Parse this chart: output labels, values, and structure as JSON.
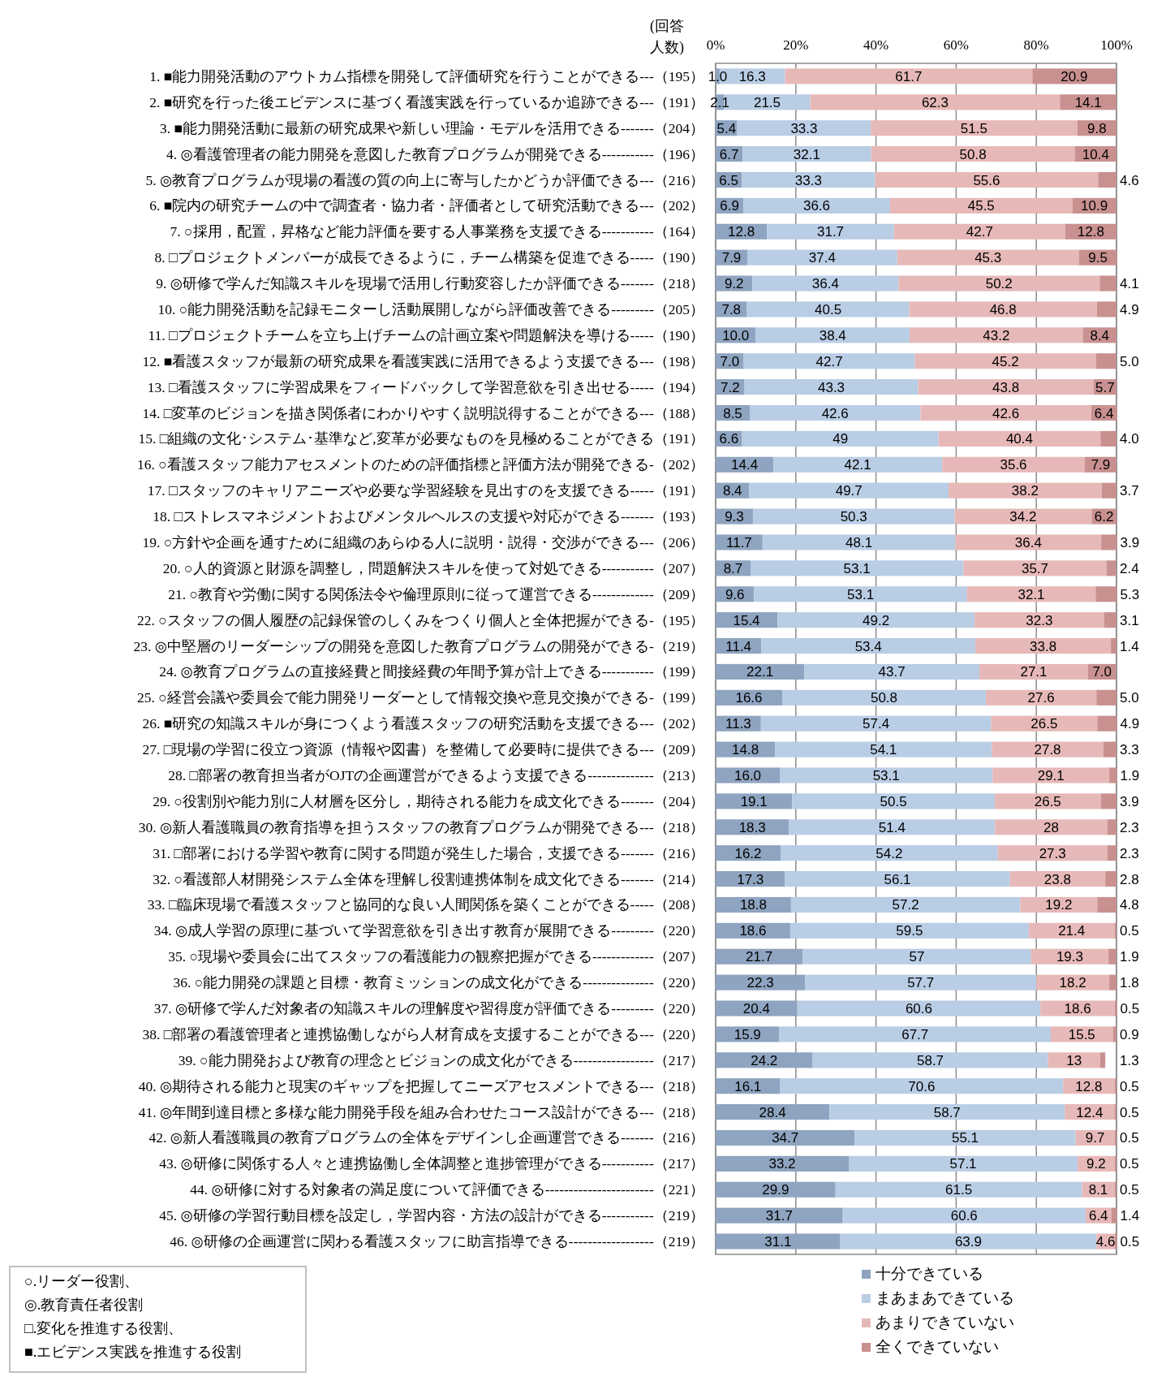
{
  "chart_data": {
    "type": "bar",
    "orientation": "horizontal",
    "stacked": true,
    "xlim": [
      0,
      100
    ],
    "xticks": [
      {
        "value": 0,
        "label": "0%"
      },
      {
        "value": 20,
        "label": "20%"
      },
      {
        "value": 40,
        "label": "40%"
      },
      {
        "value": 60,
        "label": "60%"
      },
      {
        "value": 80,
        "label": "80%"
      },
      {
        "value": 100,
        "label": "100%"
      }
    ],
    "grid": "x",
    "legend": "bottom right",
    "annotations": [
      "(回答",
      "人数)",
      "○.リーダー役割、",
      "◎.教育責任者役割",
      "□.変化を推進する役割、",
      "■.エビデンス実践を推進する役割"
    ],
    "categories": [
      "1. ■能力開発活動のアウトカム指標を開発して評価研究を行うことができる---（195）",
      "2. ■研究を行った後エビデンスに基づく看護実践を行っているか追跡できる---（191）",
      "3. ■能力開発活動に最新の研究成果や新しい理論・モデルを活用できる-------（204）",
      "4. ◎看護管理者の能力開発を意図した教育プログラムが開発できる-----------（196）",
      "5. ◎教育プログラムが現場の看護の質の向上に寄与したかどうか評価できる---（216）",
      "6. ■院内の研究チームの中で調査者・協力者・評価者として研究活動できる---（202）",
      "7. ○採用，配置，昇格など能力評価を要する人事業務を支援できる-----------（164）",
      "8. □プロジェクトメンバーが成長できるように，チーム構築を促進できる-----（190）",
      "9. ◎研修で学んだ知識スキルを現場で活用し行動変容したか評価できる-------（218）",
      "10. ○能力開発活動を記録モニターし活動展開しながら評価改善できる---------（205）",
      "11. □プロジェクトチームを立ち上げチームの計画立案や問題解決を導ける-----（190）",
      "12. ■看護スタッフが最新の研究成果を看護実践に活用できるよう支援できる---（198）",
      "13. □看護スタッフに学習成果をフィードバックして学習意欲を引き出せる-----（194）",
      "14. □変革のビジョンを描き関係者にわかりやすく説明説得することができる---（188）",
      "15. □組織の文化･システム･基準など,変革が必要なものを見極めることができる（191）",
      "16. ○看護スタッフ能力アセスメントのための評価指標と評価方法が開発できる-（202）",
      "17. □スタッフのキャリアニーズや必要な学習経験を見出すのを支援できる-----（191）",
      "18. □ストレスマネジメントおよびメンタルヘルスの支援や対応ができる-------（193）",
      "19. ○方針や企画を通すために組織のあらゆる人に説明・説得・交渉ができる---（206）",
      "20. ○人的資源と財源を調整し，問題解決スキルを使って対処できる-----------（207）",
      "21. ○教育や労働に関する関係法令や倫理原則に従って運営できる-------------（209）",
      "22. ○スタッフの個人履歴の記録保管のしくみをつくり個人と全体把握ができる-（195）",
      "23. ◎中堅層のリーダーシップの開発を意図した教育プログラムの開発ができる-（219）",
      "24. ◎教育プログラムの直接経費と間接経費の年間予算が計上できる-----------（199）",
      "25. ○経営会議や委員会で能力開発リーダーとして情報交換や意見交換ができる-（199）",
      "26. ■研究の知識スキルが身につくよう看護スタッフの研究活動を支援できる---（202）",
      "27. □現場の学習に役立つ資源（情報や図書）を整備して必要時に提供できる---（209）",
      "28. □部署の教育担当者がOJTの企画運営ができるよう支援できる--------------（213）",
      "29. ○役割別や能力別に人材層を区分し，期待される能力を成文化できる-------（204）",
      "30. ◎新人看護職員の教育指導を担うスタッフの教育プログラムが開発できる---（218）",
      "31. □部署における学習や教育に関する問題が発生した場合，支援できる-------（216）",
      "32. ○看護部人材開発システム全体を理解し役割連携体制を成文化できる-------（214）",
      "33. □臨床現場で看護スタッフと協同的な良い人間関係を築くことができる-----（208）",
      "34. ◎成人学習の原理に基づいて学習意欲を引き出す教育が展開できる---------（220）",
      "35. ○現場や委員会に出てスタッフの看護能力の観察把握ができる-------------（207）",
      "36. ○能力開発の課題と目標・教育ミッションの成文化ができる---------------（220）",
      "37. ◎研修で学んだ対象者の知識スキルの理解度や習得度が評価できる---------（220）",
      "38. □部署の看護管理者と連携協働しながら人材育成を支援することができる---（220）",
      "39. ○能力開発および教育の理念とビジョンの成文化ができる-----------------（217）",
      "40. ◎期待される能力と現実のギャップを把握してニーズアセスメントできる---（218）",
      "41. ◎年間到達目標と多様な能力開発手段を組み合わせたコース設計ができる---（218）",
      "42. ◎新人看護職員の教育プログラムの全体をデザインし企画運営できる-------（216）",
      "43. ◎研修に関係する人々と連携協働し全体調整と進捗管理ができる-----------（217）",
      "44. ◎研修に対する対象者の満足度について評価できる-----------------------（221）",
      "45. ◎研修の学習行動目標を設定し，学習内容・方法の設計ができる-----------（219）",
      "46. ◎研修の企画運営に関わる看護スタッフに助言指導できる------------------（219）"
    ],
    "series": [
      {
        "name": "十分できている",
        "color": "#8ea4c0",
        "values": [
          1.0,
          2.1,
          5.4,
          6.7,
          6.5,
          6.9,
          12.8,
          7.9,
          9.2,
          7.8,
          10.0,
          7.0,
          7.2,
          8.5,
          6.6,
          14.4,
          8.4,
          9.3,
          11.7,
          8.7,
          9.6,
          15.4,
          11.4,
          22.1,
          16.6,
          11.3,
          14.8,
          16.0,
          19.1,
          18.3,
          16.2,
          17.3,
          18.8,
          18.6,
          21.7,
          22.3,
          20.4,
          15.9,
          24.2,
          16.1,
          28.4,
          34.7,
          33.2,
          29.9,
          31.7,
          31.1
        ],
        "value_labels": [
          "1.0",
          "2.1",
          "5.4",
          "6.7",
          "6.5",
          "6.9",
          "12.8",
          "7.9",
          "9.2",
          "7.8",
          "10.0",
          "7.0",
          "7.2",
          "8.5",
          "6.6",
          "14.4",
          "8.4",
          "9.3",
          "11.7",
          "8.7",
          "9.6",
          "15.4",
          "11.4",
          "22.1",
          "16.6",
          "11.3",
          "14.8",
          "16.0",
          "19.1",
          "18.3",
          "16.2",
          "17.3",
          "18.8",
          "18.6",
          "21.7",
          "22.3",
          "20.4",
          "15.9",
          "24.2",
          "16.1",
          "28.4",
          "34.7",
          "33.2",
          "29.9",
          "31.7",
          "31.1"
        ]
      },
      {
        "name": "まあまあできている",
        "color": "#b9cde5",
        "values": [
          16.3,
          21.5,
          33.3,
          32.1,
          33.3,
          36.6,
          31.7,
          37.4,
          36.4,
          40.5,
          38.4,
          42.7,
          43.3,
          42.6,
          49,
          42.1,
          49.7,
          50.3,
          48.1,
          53.1,
          53.1,
          49.2,
          53.4,
          43.7,
          50.8,
          57.4,
          54.1,
          53.1,
          50.5,
          51.4,
          54.2,
          56.1,
          57.2,
          59.5,
          57,
          57.7,
          60.6,
          67.7,
          58.7,
          70.6,
          58.7,
          55.1,
          57.1,
          61.5,
          60.6,
          63.9
        ],
        "value_labels": [
          "16.3",
          "21.5",
          "33.3",
          "32.1",
          "33.3",
          "36.6",
          "31.7",
          "37.4",
          "36.4",
          "40.5",
          "38.4",
          "42.7",
          "43.3",
          "42.6",
          "49",
          "42.1",
          "49.7",
          "50.3",
          "48.1",
          "53.1",
          "53.1",
          "49.2",
          "53.4",
          "43.7",
          "50.8",
          "57.4",
          "54.1",
          "53.1",
          "50.5",
          "51.4",
          "54.2",
          "56.1",
          "57.2",
          "59.5",
          "57",
          "57.7",
          "60.6",
          "67.7",
          "58.7",
          "70.6",
          "58.7",
          "55.1",
          "57.1",
          "61.5",
          "60.6",
          "63.9"
        ]
      },
      {
        "name": "あまりできていない",
        "color": "#e6b9b8",
        "values": [
          61.7,
          62.3,
          51.5,
          50.8,
          55.6,
          45.5,
          42.7,
          45.3,
          50.2,
          46.8,
          43.2,
          45.2,
          43.8,
          42.6,
          40.4,
          35.6,
          38.2,
          34.2,
          36.4,
          35.7,
          32.1,
          32.3,
          33.8,
          27.1,
          27.6,
          26.5,
          27.8,
          29.1,
          26.5,
          28,
          27.3,
          23.8,
          19.2,
          21.4,
          19.3,
          18.2,
          18.6,
          15.5,
          13,
          12.8,
          12.4,
          9.7,
          9.2,
          8.1,
          6.4,
          4.6
        ],
        "value_labels": [
          "61.7",
          "62.3",
          "51.5",
          "50.8",
          "55.6",
          "45.5",
          "42.7",
          "45.3",
          "50.2",
          "46.8",
          "43.2",
          "45.2",
          "43.8",
          "42.6",
          "40.4",
          "35.6",
          "38.2",
          "34.2",
          "36.4",
          "35.7",
          "32.1",
          "32.3",
          "33.8",
          "27.1",
          "27.6",
          "26.5",
          "27.8",
          "29.1",
          "26.5",
          "28",
          "27.3",
          "23.8",
          "19.2",
          "21.4",
          "19.3",
          "18.2",
          "18.6",
          "15.5",
          "13",
          "12.8",
          "12.4",
          "9.7",
          "9.2",
          "8.1",
          "6.4",
          "4.6"
        ]
      },
      {
        "name": "全くできていない",
        "color": "#c89190",
        "values": [
          20.9,
          14.1,
          9.8,
          10.4,
          4.6,
          10.9,
          12.8,
          9.5,
          4.1,
          4.9,
          8.4,
          5.0,
          5.7,
          6.4,
          4.0,
          7.9,
          3.7,
          6.2,
          3.9,
          2.4,
          5.3,
          3.1,
          1.4,
          7.0,
          5.0,
          4.9,
          3.3,
          1.9,
          3.9,
          2.3,
          2.3,
          2.8,
          4.8,
          0.5,
          1.9,
          1.8,
          0.5,
          0.9,
          1.3,
          0.5,
          0.5,
          0.5,
          0.5,
          0.5,
          1.4,
          0.5
        ],
        "value_labels": [
          "20.9",
          "14.1",
          "9.8",
          "10.4",
          "4.6",
          "10.9",
          "12.8",
          "9.5",
          "4.1",
          "4.9",
          "8.4",
          "5.0",
          "5.7",
          "6.4",
          "4.0",
          "7.9",
          "3.7",
          "6.2",
          "3.9",
          "2.4",
          "5.3",
          "3.1",
          "1.4",
          "7.0",
          "5.0",
          "4.9",
          "3.3",
          "1.9",
          "3.9",
          "2.3",
          "2.3",
          "2.8",
          "4.8",
          "0.5",
          "1.9",
          "1.8",
          "0.5",
          "0.9",
          "1.3",
          "0.5",
          "0.5",
          "0.5",
          "0.5",
          "0.5",
          "1.4",
          "0.5"
        ]
      }
    ]
  }
}
